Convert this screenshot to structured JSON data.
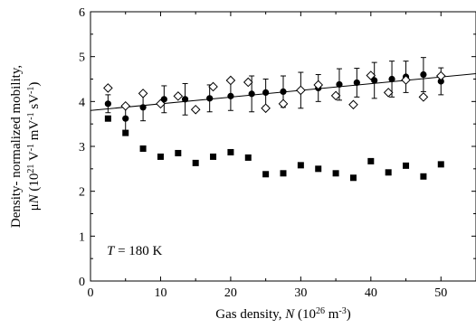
{
  "chart_data": {
    "type": "scatter",
    "xlabel": {
      "main": "Gas density, ",
      "var": "N",
      "open": " (10",
      "exp": "26",
      "unit": " m",
      "unit_exp": "-3",
      "close": ")"
    },
    "ylabel": {
      "line1": "Density- normalized mobility,",
      "mu": "μ",
      "var": "N",
      "open": " (10",
      "exp1": "21",
      "u1": " V",
      "e2": "-1",
      "u2": " mV",
      "e3": "-1",
      "u3": " sV",
      "e4": "-1",
      "close": ")"
    },
    "annotation": {
      "var": "T",
      "rest": " = 180 K"
    },
    "xlim": [
      0,
      55
    ],
    "ylim": [
      0,
      6
    ],
    "xticks": [
      "0",
      "10",
      "20",
      "30",
      "40",
      "50"
    ],
    "xtick_values": [
      0,
      10,
      20,
      30,
      40,
      50
    ],
    "yticks": [
      "0",
      "1",
      "2",
      "3",
      "4",
      "5",
      "6"
    ],
    "ytick_values": [
      0,
      1,
      2,
      3,
      4,
      5,
      6
    ],
    "grid": false,
    "series": [
      {
        "marker": "filled-circle",
        "color": "#000000",
        "x": [
          2.5,
          5,
          7.5,
          10.5,
          13.5,
          17,
          20,
          23,
          25,
          27.5,
          30,
          32.5,
          35.5,
          38,
          40.5,
          43,
          45,
          47.5,
          50
        ],
        "y": [
          3.95,
          3.62,
          3.87,
          4.05,
          4.05,
          4.07,
          4.12,
          4.17,
          4.2,
          4.22,
          4.25,
          4.3,
          4.38,
          4.42,
          4.47,
          4.5,
          4.55,
          4.6,
          4.45
        ],
        "yerr": [
          0.2,
          0.28,
          0.3,
          0.3,
          0.35,
          0.3,
          0.32,
          0.4,
          0.3,
          0.35,
          0.4,
          0.3,
          0.35,
          0.32,
          0.4,
          0.4,
          0.35,
          0.38,
          0.3
        ]
      },
      {
        "marker": "open-diamond",
        "color": "#000000",
        "x": [
          2.5,
          5,
          7.5,
          10,
          12.5,
          15,
          17.5,
          20,
          22.5,
          25,
          27.5,
          30,
          32.5,
          35,
          37.5,
          40,
          42.5,
          45,
          47.5,
          50
        ],
        "y": [
          4.3,
          3.9,
          4.18,
          3.95,
          4.12,
          3.82,
          4.33,
          4.47,
          4.43,
          3.85,
          3.95,
          4.25,
          4.37,
          4.13,
          3.93,
          4.58,
          4.2,
          4.48,
          4.1,
          4.57
        ]
      },
      {
        "marker": "filled-square",
        "color": "#000000",
        "x": [
          2.5,
          5,
          7.5,
          10,
          12.5,
          15,
          17.5,
          20,
          22.5,
          25,
          27.5,
          30,
          32.5,
          35,
          37.5,
          40,
          42.5,
          45,
          47.5,
          50
        ],
        "y": [
          3.62,
          3.3,
          2.95,
          2.77,
          2.85,
          2.63,
          2.77,
          2.87,
          2.75,
          2.38,
          2.4,
          2.58,
          2.5,
          2.4,
          2.3,
          2.67,
          2.42,
          2.57,
          2.33,
          2.6
        ]
      }
    ],
    "fit_line": {
      "x": [
        0,
        55
      ],
      "y": [
        3.8,
        4.62
      ]
    }
  }
}
